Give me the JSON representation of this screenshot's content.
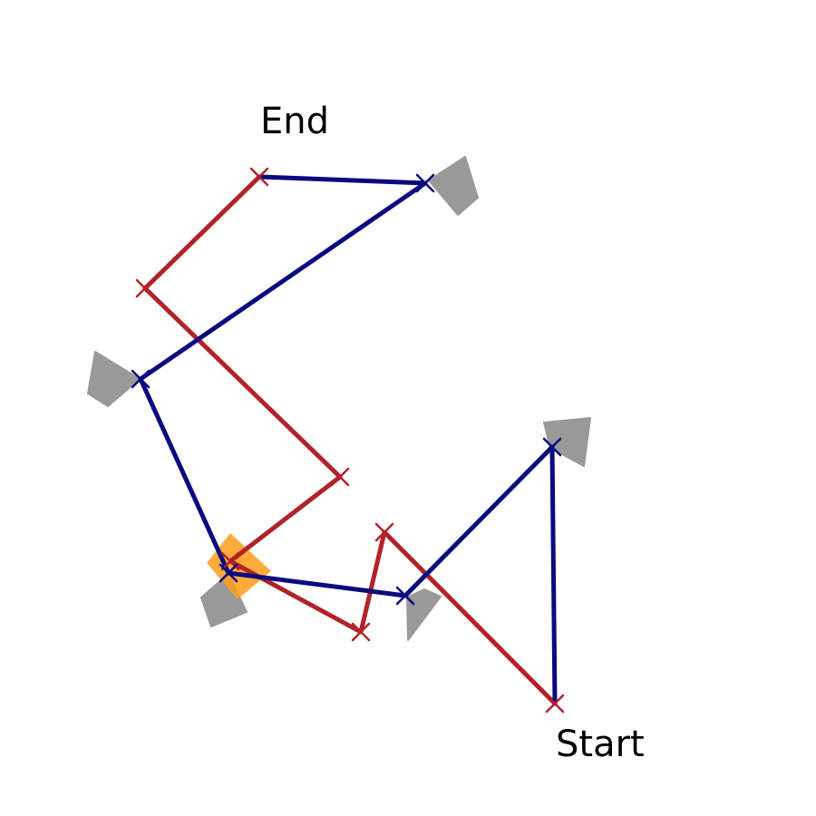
{
  "labels": {
    "start": "Start",
    "end": "End"
  },
  "colors": {
    "background": "#ffffff",
    "red_path": "#b22228",
    "blue_path": "#0a0a80",
    "arrowhead": "#999999",
    "highlight": "#ff9d1a",
    "text": "#000000"
  },
  "icons": {
    "vertex_marker": "x-mark-icon",
    "direction_marker": "arrowhead-icon",
    "highlight_marker": "diamond-highlight-icon"
  }
}
